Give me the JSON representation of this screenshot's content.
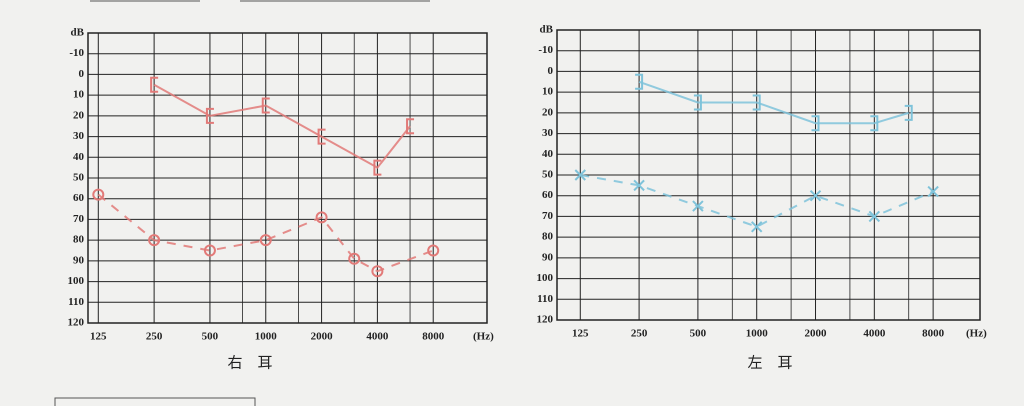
{
  "chart_data": [
    {
      "type": "audiogram",
      "title": "右　耳",
      "y_label": "dB",
      "x_label": "(Hz)",
      "log_x": true,
      "xlim": [
        110,
        15600
      ],
      "xticks": [
        125,
        250,
        500,
        1000,
        2000,
        4000,
        8000
      ],
      "xgrid": [
        750,
        1500,
        3000,
        6000
      ],
      "ylim": [
        -20,
        120
      ],
      "yticks": [
        -10,
        0,
        10,
        20,
        30,
        40,
        50,
        60,
        70,
        80,
        90,
        100,
        110,
        120
      ],
      "y_reversed": true,
      "grid": true,
      "series": [
        {
          "color": "#e27a78",
          "marker": "bracket-left",
          "dashed": false,
          "x": [
            250,
            500,
            1000,
            2000,
            4000,
            6000
          ],
          "values": [
            5,
            20,
            15,
            30,
            45,
            25
          ]
        },
        {
          "color": "#e27a78",
          "marker": "circle",
          "dashed": true,
          "x": [
            125,
            250,
            500,
            1000,
            2000,
            3000,
            4000,
            8000
          ],
          "values": [
            58,
            80,
            85,
            80,
            69,
            89,
            95,
            85
          ]
        }
      ]
    },
    {
      "type": "audiogram",
      "title": "左　耳",
      "y_label": "dB",
      "x_label": "(Hz)",
      "log_x": true,
      "xlim": [
        95,
        13900
      ],
      "xticks": [
        125,
        250,
        500,
        1000,
        2000,
        4000,
        8000
      ],
      "xgrid": [
        750,
        1500,
        3000,
        6000
      ],
      "ylim": [
        -20,
        120
      ],
      "yticks": [
        -10,
        0,
        10,
        20,
        30,
        40,
        50,
        60,
        70,
        80,
        90,
        100,
        110,
        120
      ],
      "y_reversed": true,
      "grid": true,
      "series": [
        {
          "color": "#7fc3da",
          "marker": "bracket-right",
          "dashed": false,
          "x": [
            250,
            500,
            1000,
            2000,
            4000,
            6000
          ],
          "values": [
            5,
            15,
            15,
            25,
            25,
            20
          ]
        },
        {
          "color": "#7fc3da",
          "marker": "cross",
          "dashed": true,
          "x": [
            125,
            250,
            500,
            1000,
            2000,
            4000,
            8000
          ],
          "values": [
            50,
            55,
            65,
            75,
            60,
            70,
            58
          ]
        }
      ]
    }
  ]
}
